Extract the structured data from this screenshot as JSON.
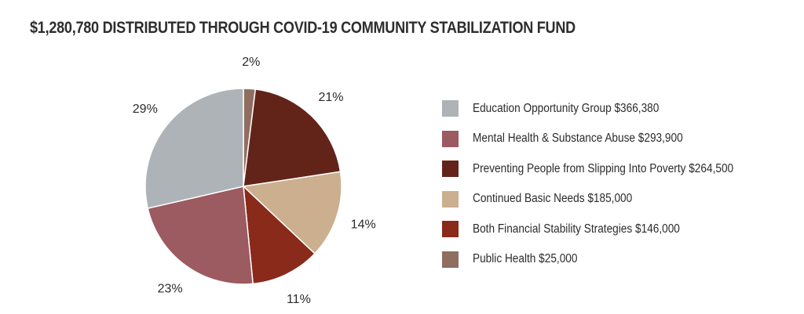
{
  "chart_data": {
    "type": "pie",
    "title": "$1,280,780 DISTRIBUTED THROUGH COVID-19 COMMUNITY STABILIZATION FUND",
    "legend_position": "right",
    "slices": [
      {
        "name": "Education Opportunity Group",
        "amount_label": "$366,380",
        "value": 366380,
        "percent_label": "29%",
        "color": "#aeb3b7"
      },
      {
        "name": "Mental Health & Substance Abuse",
        "amount_label": "$293,900",
        "value": 293900,
        "percent_label": "23%",
        "color": "#9c5a61"
      },
      {
        "name": "Preventing People from Slipping Into Poverty",
        "amount_label": "$264,500",
        "value": 264500,
        "percent_label": "21%",
        "color": "#622419"
      },
      {
        "name": "Continued Basic Needs",
        "amount_label": "$185,000",
        "value": 185000,
        "percent_label": "14%",
        "color": "#cbaf8e"
      },
      {
        "name": "Both Financial Stability Strategies",
        "amount_label": "$146,000",
        "value": 146000,
        "percent_label": "11%",
        "color": "#8a2a1b"
      },
      {
        "name": "Public Health",
        "amount_label": "$25,000",
        "value": 25000,
        "percent_label": "2%",
        "color": "#8f6e61"
      }
    ],
    "draw_order": [
      5,
      2,
      3,
      4,
      1,
      0
    ]
  },
  "legend": {
    "items": [
      "Education Opportunity Group $366,380",
      "Mental Health & Substance Abuse $293,900",
      "Preventing People from Slipping Into Poverty $264,500",
      "Continued Basic Needs $185,000",
      "Both Financial Stability Strategies $146,000",
      "Public Health $25,000"
    ]
  }
}
